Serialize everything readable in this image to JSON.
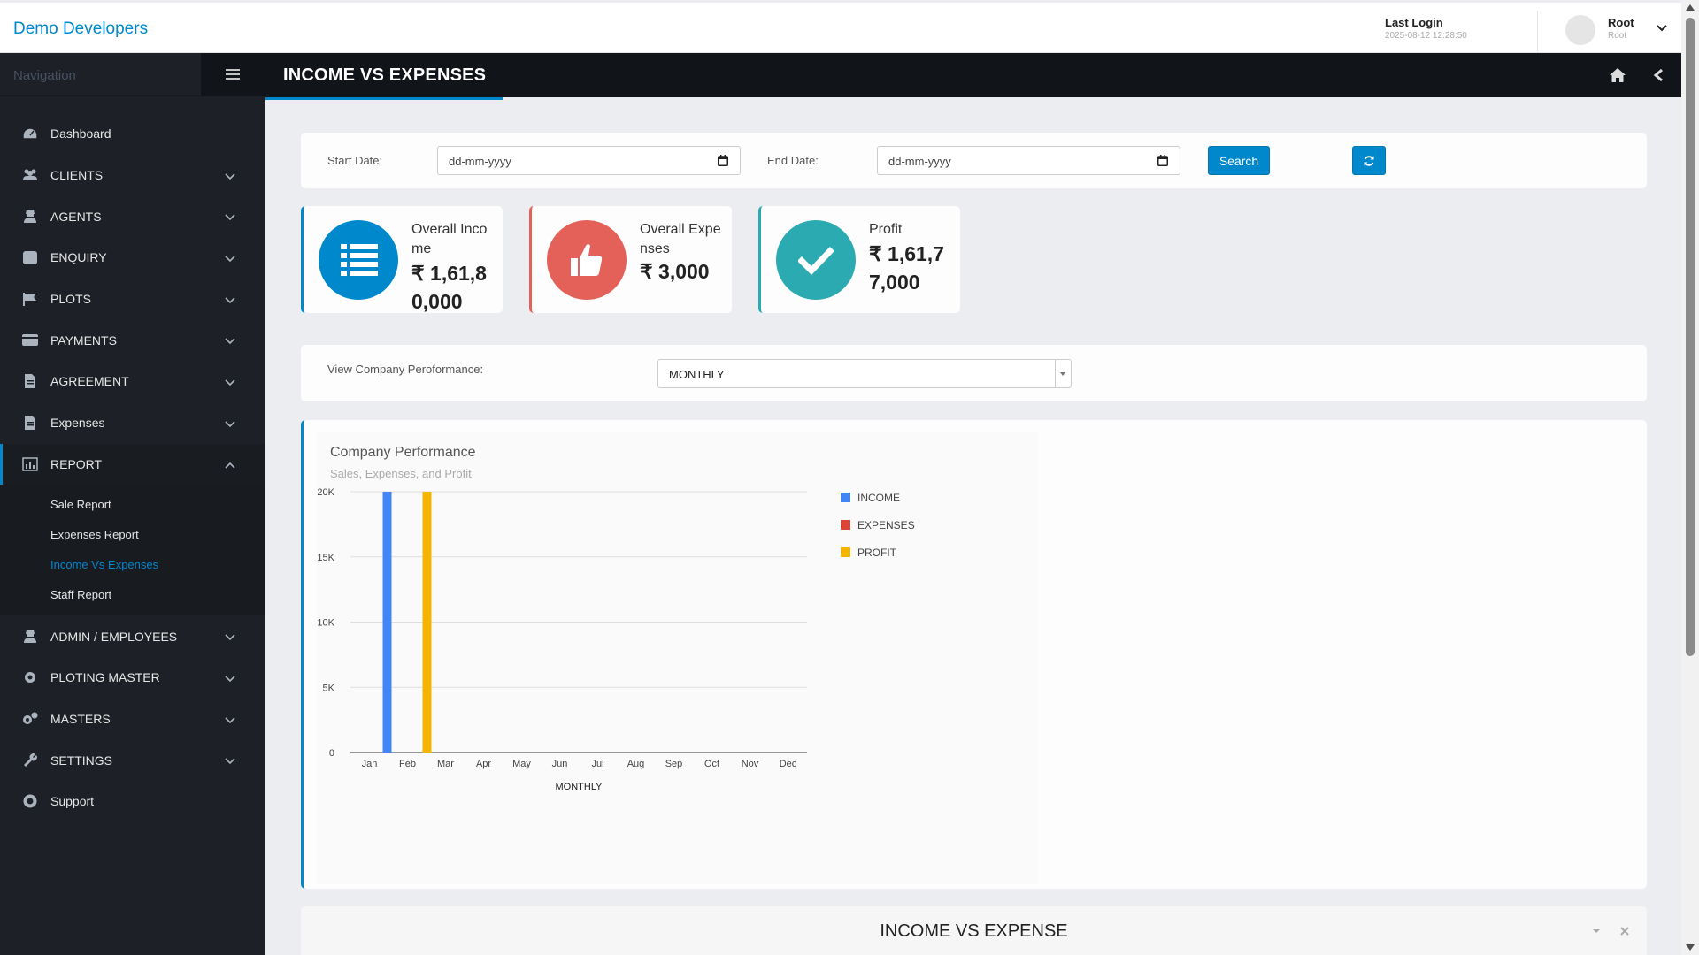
{
  "app": {
    "brand": "Demo Developers"
  },
  "header": {
    "last_login_label": "Last Login",
    "last_login_time": "2025-08-12 12:28:50",
    "user_name": "Root",
    "user_role": "Root"
  },
  "sidebar": {
    "nav_label": "Navigation",
    "items": [
      {
        "label": "Dashboard",
        "icon": "dashboard-icon",
        "chevron": false
      },
      {
        "label": "CLIENTS",
        "icon": "users-icon",
        "chevron": true
      },
      {
        "label": "AGENTS",
        "icon": "agent-icon",
        "chevron": true
      },
      {
        "label": "ENQUIRY",
        "icon": "phone-icon",
        "chevron": true
      },
      {
        "label": "PLOTS",
        "icon": "flag-icon",
        "chevron": true
      },
      {
        "label": "PAYMENTS",
        "icon": "credit-card-icon",
        "chevron": true
      },
      {
        "label": "AGREEMENT",
        "icon": "document-icon",
        "chevron": true
      },
      {
        "label": "Expenses",
        "icon": "document-icon",
        "chevron": true
      },
      {
        "label": "REPORT",
        "icon": "bar-chart-icon",
        "chevron": true,
        "active": true
      }
    ],
    "report_sub": [
      "Sale Report",
      "Expenses Report",
      "Income Vs Expenses",
      "Staff Report"
    ],
    "report_current": "Income Vs Expenses",
    "items_after": [
      {
        "label": "ADMIN / EMPLOYEES",
        "icon": "agent-icon",
        "chevron": true
      },
      {
        "label": "PLOTING MASTER",
        "icon": "gear-icon",
        "chevron": true
      },
      {
        "label": "MASTERS",
        "icon": "gears-icon",
        "chevron": true
      },
      {
        "label": "SETTINGS",
        "icon": "wrench-icon",
        "chevron": true
      },
      {
        "label": "Support",
        "icon": "lifebuoy-icon",
        "chevron": false
      }
    ]
  },
  "page": {
    "title": "INCOME VS EXPENSES"
  },
  "filter": {
    "start_label": "Start Date:",
    "start_placeholder": "dd-mm-yyyy",
    "end_label": "End Date:",
    "end_placeholder": "dd-mm-yyyy",
    "search_label": "Search"
  },
  "stats": [
    {
      "title": "Overall Income",
      "value": "₹ 1,61,80,000",
      "color": "#0088cc",
      "icon": "list-icon"
    },
    {
      "title": "Overall Expenses",
      "value": "₹ 3,000",
      "color": "#e36159",
      "icon": "thumbs-up-icon"
    },
    {
      "title": "Profit",
      "value": "₹ 1,61,77,000",
      "color": "#2baab1",
      "icon": "check-icon"
    }
  ],
  "performance": {
    "label": "View Company Peroformance:",
    "selected": "MONTHLY"
  },
  "chart": {
    "title": "Company Performance",
    "subtitle": "Sales, Expenses, and Profit"
  },
  "chart_data": {
    "type": "bar",
    "categories": [
      "Jan",
      "Feb",
      "Mar",
      "Apr",
      "May",
      "Jun",
      "Jul",
      "Aug",
      "Sep",
      "Oct",
      "Nov",
      "Dec"
    ],
    "series": [
      {
        "name": "INCOME",
        "color": "#4285f4",
        "values": [
          0,
          20000,
          0,
          0,
          0,
          0,
          0,
          0,
          0,
          0,
          0,
          0
        ]
      },
      {
        "name": "EXPENSES",
        "color": "#db4437",
        "values": [
          0,
          0,
          0,
          0,
          0,
          0,
          0,
          0,
          0,
          0,
          0,
          0
        ]
      },
      {
        "name": "PROFIT",
        "color": "#f4b400",
        "values": [
          0,
          20000,
          0,
          0,
          0,
          0,
          0,
          0,
          0,
          0,
          0,
          0
        ]
      }
    ],
    "yticks": [
      "0",
      "5K",
      "10K",
      "15K",
      "20K"
    ],
    "ylim": [
      0,
      20000
    ],
    "xlabel": "MONTHLY",
    "grid": true,
    "legend": "right"
  },
  "bottom_panel": {
    "title": "INCOME VS EXPENSE"
  }
}
